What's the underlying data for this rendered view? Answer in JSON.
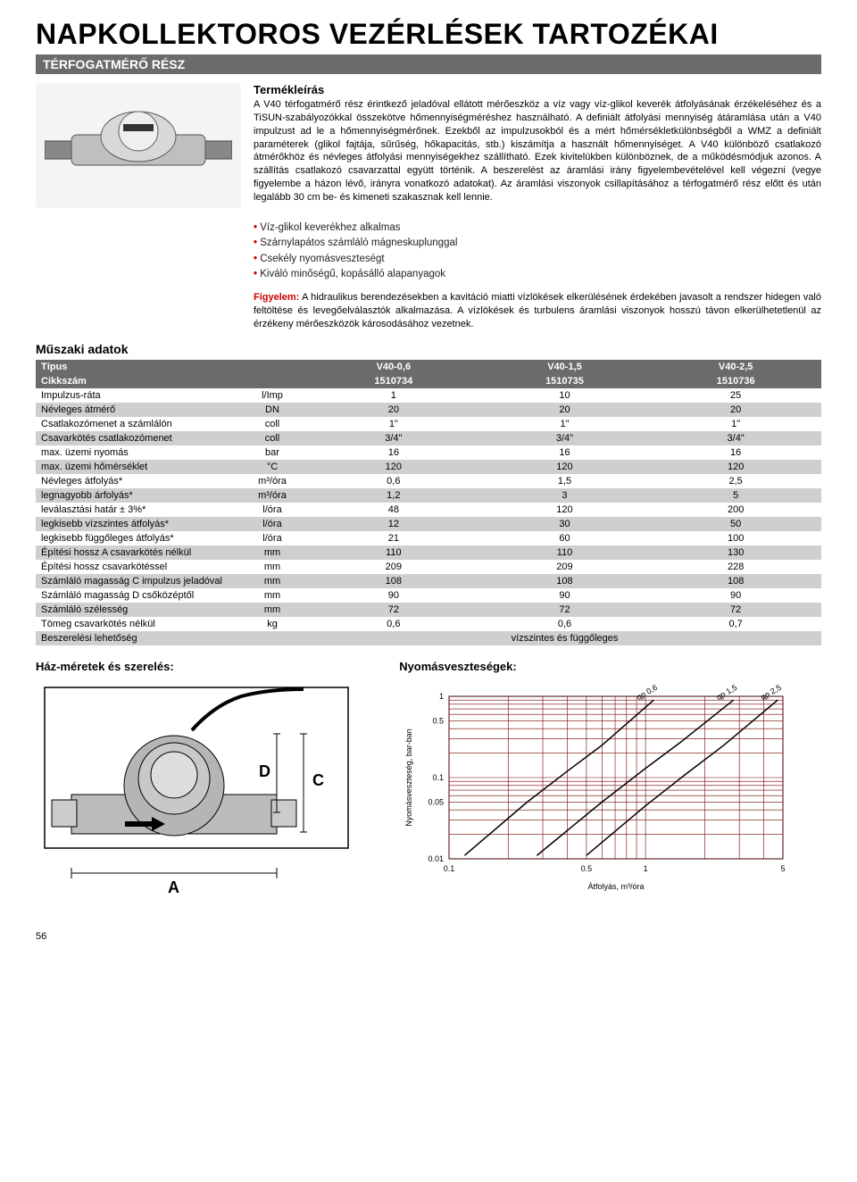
{
  "title": "NAPKOLLEKTOROS VEZÉRLÉSEK TARTOZÉKAI",
  "subtitle": "TÉRFOGATMÉRŐ RÉSZ",
  "desc_title": "Termékleírás",
  "desc_body": "A V40 térfogatmérő rész érintkező jeladóval ellátott mérőeszköz a víz vagy víz-glikol keverék átfolyásának érzékeléséhez és a TiSUN-szabályozókkal összekötve hőmennyiségméréshez használható. A definiált átfolyási mennyiség átáramlása után a V40 impulzust ad le a hőmennyiségmérőnek. Ezekből az impulzusokból és a mért hőmérsékletkülönbségből a WMZ a definiált paraméterek (glikol fajtája, sűrűség, hőkapacitás, stb.) kiszámítja a használt hőmennyiséget. A V40 különböző csatlakozó átmérőkhöz és névleges átfolyási mennyiségekhez szállítható. Ezek kivitelükben különböznek, de a működésmódjuk azonos. A szállítás csatlakozó csavarzattal együtt történik. A beszerelést az áramlási irány figyelembevételével kell végezni (vegye figyelembe a házon lévő, irányra vonatkozó adatokat). Az áramlási viszonyok csillapításához a térfogatmérő rész előtt és után legalább 30 cm be- és kimeneti szakasznak kell lennie.",
  "bullets": [
    "Víz-glikol keverékhez alkalmas",
    "Szárnylapátos számláló mágneskuplunggal",
    "Csekély nyomásveszteségт",
    "Kiváló minőségű, kopásálló alapanyagok"
  ],
  "bullet0": "Víz-glikol keverékhez alkalmas",
  "bullet1": "Szárnylapátos számláló mágneskuplunggal",
  "bullet2": "Csekély nyomásveszteségt",
  "bullet3": "Kiváló minőségű, kopásálló alapanyagok",
  "attention_label": "Figyelem:",
  "attention_body": " A hidraulikus berendezésekben a kavitáció miatti vízlökések elkerülésének érdekében javasolt a rendszer hidegen való feltöltése és levegőelválasztók alkalmazása. A vízlökések és turbulens áramlási viszonyok hosszú távon elkerülhetetlenül az érzékeny mérőeszközök károsodásához vezetnek.",
  "tech_h": "Műszaki adatok",
  "housing_h": "Ház-méretek és szerelés:",
  "chart_h": "Nyomásveszteségek:",
  "page_num": "56",
  "table": {
    "head1": {
      "c0": "Típus",
      "c1": "",
      "c2": "V40-0,6",
      "c3": "V40-1,5",
      "c4": "V40-2,5"
    },
    "head2": {
      "c0": "Cikkszám",
      "c1": "",
      "c2": "1510734",
      "c3": "1510735",
      "c4": "1510736"
    },
    "rows": [
      {
        "c0": "Impulzus-ráta",
        "c1": "l/Imp",
        "c2": "1",
        "c3": "10",
        "c4": "25",
        "cls": "row-white"
      },
      {
        "c0": "Névleges átmérő",
        "c1": "DN",
        "c2": "20",
        "c3": "20",
        "c4": "20",
        "cls": "row-gray"
      },
      {
        "c0": "Csatlakozómenet a számlálón",
        "c1": "coll",
        "c2": "1\"",
        "c3": "1\"",
        "c4": "1\"",
        "cls": "row-white"
      },
      {
        "c0": "Csavarkötés csatlakozómenet",
        "c1": "coll",
        "c2": "3/4\"",
        "c3": "3/4\"",
        "c4": "3/4\"",
        "cls": "row-gray"
      },
      {
        "c0": "max. üzemi nyomás",
        "c1": "bar",
        "c2": "16",
        "c3": "16",
        "c4": "16",
        "cls": "row-white"
      },
      {
        "c0": "max. üzemi hőmérséklet",
        "c1": "°C",
        "c2": "120",
        "c3": "120",
        "c4": "120",
        "cls": "row-gray"
      },
      {
        "c0": "Névleges átfolyás*",
        "c1": "m³/óra",
        "c2": "0,6",
        "c3": "1,5",
        "c4": "2,5",
        "cls": "row-white"
      },
      {
        "c0": "legnagyobb árfolyás*",
        "c1": "m³/óra",
        "c2": "1,2",
        "c3": "3",
        "c4": "5",
        "cls": "row-gray"
      },
      {
        "c0": "leválasztási határ ± 3%*",
        "c1": "l/óra",
        "c2": "48",
        "c3": "120",
        "c4": "200",
        "cls": "row-white"
      },
      {
        "c0": "legkisebb vízszintes átfolyás*",
        "c1": "l/óra",
        "c2": "12",
        "c3": "30",
        "c4": "50",
        "cls": "row-gray"
      },
      {
        "c0": "legkisebb függőleges átfolyás*",
        "c1": "l/óra",
        "c2": "21",
        "c3": "60",
        "c4": "100",
        "cls": "row-white"
      },
      {
        "c0": "Építési hossz A csavarkötés nélkül",
        "c1": "mm",
        "c2": "110",
        "c3": "110",
        "c4": "130",
        "cls": "row-gray"
      },
      {
        "c0": "Építési hossz csavarkötéssel",
        "c1": "mm",
        "c2": "209",
        "c3": "209",
        "c4": "228",
        "cls": "row-white"
      },
      {
        "c0": "Számláló magasság C impulzus jeladóval",
        "c1": "mm",
        "c2": "108",
        "c3": "108",
        "c4": "108",
        "cls": "row-gray"
      },
      {
        "c0": "Számláló magasság D csőközéptől",
        "c1": "mm",
        "c2": "90",
        "c3": "90",
        "c4": "90",
        "cls": "row-white"
      },
      {
        "c0": "Számláló szélesség",
        "c1": "mm",
        "c2": "72",
        "c3": "72",
        "c4": "72",
        "cls": "row-gray"
      },
      {
        "c0": "Tömeg csavarkötés nélkül",
        "c1": "kg",
        "c2": "0,6",
        "c3": "0,6",
        "c4": "0,7",
        "cls": "row-white"
      }
    ],
    "lastrow": {
      "c0": "Beszerelési lehetőség",
      "c1": "",
      "merged": "vízszintes és függőleges",
      "cls": "row-gray"
    }
  },
  "housing_labels": {
    "D": "D",
    "C": "C",
    "A": "A"
  },
  "chart": {
    "type": "log-log-line",
    "x_label": "Átfolyás, m³/óra",
    "y_label": "Nyomásveszteség, bar-ban",
    "x_ticks": [
      "0.1",
      "0.5",
      "1",
      "5"
    ],
    "y_ticks": [
      "0.01",
      "0.05",
      "0.1",
      "0.5",
      "1"
    ],
    "xlim": [
      0.1,
      5
    ],
    "ylim": [
      0.01,
      1
    ],
    "grid_color": "#7a0000",
    "bg": "#ffffff",
    "line_color": "#000000",
    "line_width": 1.5,
    "series": [
      {
        "label": "qp 0,6",
        "points": [
          [
            0.12,
            0.011
          ],
          [
            0.25,
            0.05
          ],
          [
            0.4,
            0.12
          ],
          [
            0.6,
            0.25
          ],
          [
            1.1,
            0.9
          ]
        ]
      },
      {
        "label": "qp 1,5",
        "points": [
          [
            0.28,
            0.011
          ],
          [
            0.6,
            0.05
          ],
          [
            1.0,
            0.13
          ],
          [
            1.5,
            0.27
          ],
          [
            2.8,
            0.9
          ]
        ]
      },
      {
        "label": "qp 2,5",
        "points": [
          [
            0.5,
            0.011
          ],
          [
            1.0,
            0.045
          ],
          [
            1.6,
            0.11
          ],
          [
            2.5,
            0.25
          ],
          [
            4.7,
            0.9
          ]
        ]
      }
    ],
    "label_fontsize": 9,
    "tick_fontsize": 9
  }
}
